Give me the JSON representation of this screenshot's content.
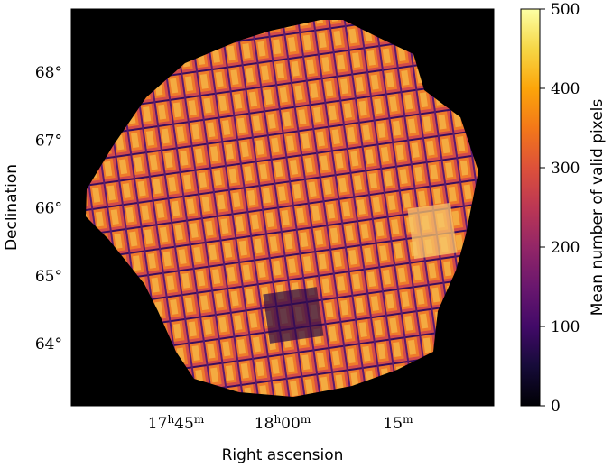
{
  "chart_data": {
    "type": "heatmap",
    "title": "",
    "xlabel": "Right ascension",
    "ylabel": "Declination",
    "x_ticks": [
      {
        "hours": "17",
        "hours_unit": "h",
        "minutes": "45",
        "minutes_unit": "m"
      },
      {
        "hours": "18",
        "hours_unit": "h",
        "minutes": "00",
        "minutes_unit": "m"
      },
      {
        "hours": "",
        "hours_unit": "",
        "minutes": "15",
        "minutes_unit": "m"
      }
    ],
    "y_ticks": [
      {
        "value": 64,
        "label": "64",
        "unit": "°"
      },
      {
        "value": 65,
        "label": "65",
        "unit": "°"
      },
      {
        "value": 66,
        "label": "66",
        "unit": "°"
      },
      {
        "value": 67,
        "label": "67",
        "unit": "°"
      },
      {
        "value": 68,
        "label": "68",
        "unit": "°"
      }
    ],
    "colorbar": {
      "label": "Mean number of valid pixels",
      "colormap": "inferno",
      "range": [
        0,
        500
      ],
      "ticks": [
        0,
        100,
        200,
        300,
        400,
        500
      ]
    },
    "background_color": "#000000"
  }
}
